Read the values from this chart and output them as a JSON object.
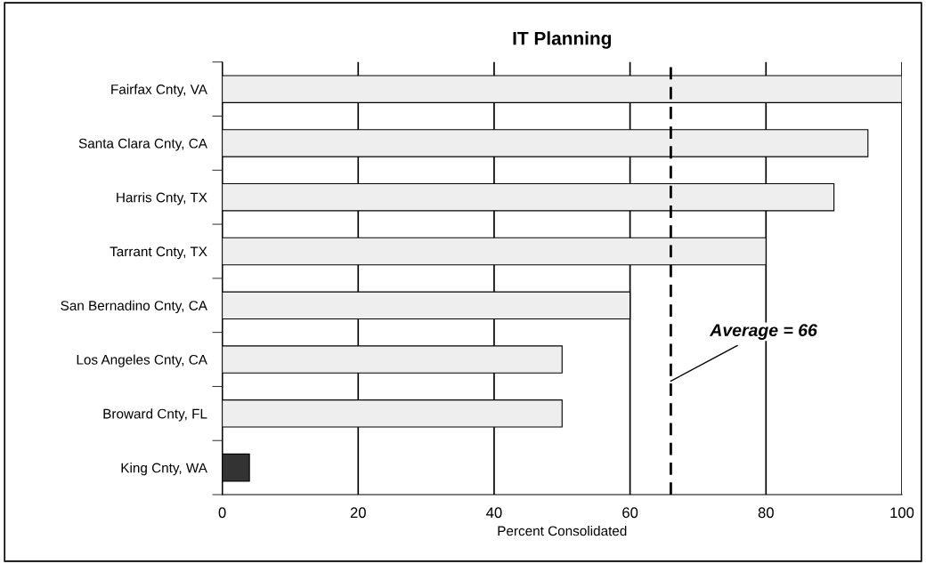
{
  "chart_data": {
    "type": "bar",
    "orientation": "horizontal",
    "title": "IT Planning",
    "xlabel": "Percent Consolidated",
    "categories": [
      "Fairfax Cnty, VA",
      "Santa Clara Cnty, CA",
      "Harris Cnty, TX",
      "Tarrant Cnty, TX",
      "San Bernadino Cnty, CA",
      "Los Angeles Cnty, CA",
      "Broward Cnty, FL",
      "King Cnty, WA"
    ],
    "values": [
      100,
      95,
      90,
      80,
      60,
      50,
      50,
      4
    ],
    "colors": [
      "#eeeeee",
      "#eeeeee",
      "#eeeeee",
      "#eeeeee",
      "#eeeeee",
      "#eeeeee",
      "#eeeeee",
      "#333333"
    ],
    "xlim": [
      0,
      100
    ],
    "xticks": [
      0,
      20,
      40,
      60,
      80,
      100
    ],
    "grid": "x",
    "ref_lines": [
      {
        "axis": "x",
        "value": 66,
        "label": "Average = 66",
        "color": "#000000",
        "line_style": "dashed"
      }
    ]
  }
}
